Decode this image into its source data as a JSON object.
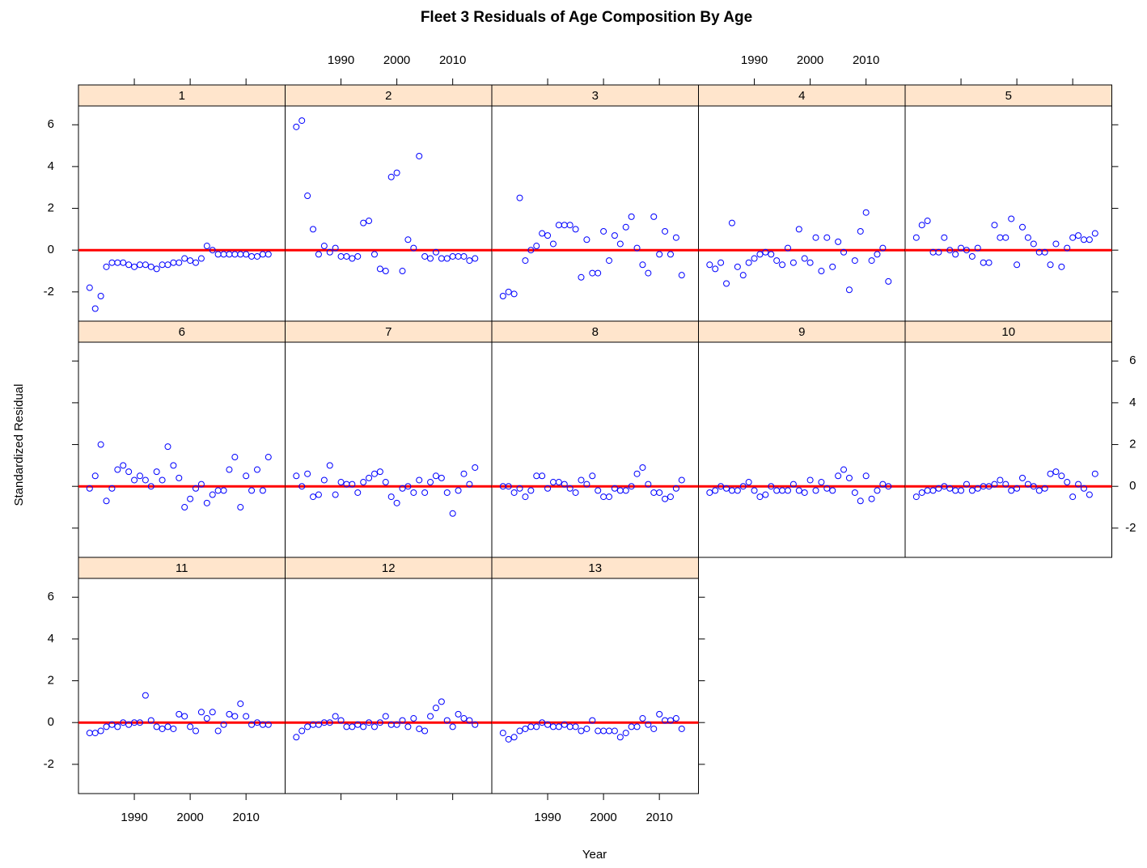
{
  "chart_data": {
    "type": "scatter",
    "title": "Fleet  3  Residuals of Age Composition By Age",
    "xlabel": "Year",
    "ylabel": "Standardized Residual",
    "x": [
      1982,
      1983,
      1984,
      1985,
      1986,
      1987,
      1988,
      1989,
      1990,
      1991,
      1992,
      1993,
      1994,
      1995,
      1996,
      1997,
      1998,
      1999,
      2000,
      2001,
      2002,
      2003,
      2004,
      2005,
      2006,
      2007,
      2008,
      2009,
      2010,
      2011,
      2012,
      2013,
      2014
    ],
    "xlim": [
      1980,
      2017
    ],
    "ylim": [
      -3.4,
      6.9
    ],
    "xticks": [
      1990,
      2000,
      2010
    ],
    "yticks": [
      -2,
      0,
      2,
      4,
      6
    ],
    "color": "#0000ff",
    "reference_line": 0,
    "reference_color": "#ff0000",
    "series": [
      {
        "name": "1",
        "values": [
          -1.8,
          -2.8,
          -2.2,
          -0.8,
          -0.6,
          -0.6,
          -0.6,
          -0.7,
          -0.8,
          -0.7,
          -0.7,
          -0.8,
          -0.9,
          -0.7,
          -0.7,
          -0.6,
          -0.6,
          -0.4,
          -0.5,
          -0.6,
          -0.4,
          0.2,
          0.0,
          -0.2,
          -0.2,
          -0.2,
          -0.2,
          -0.2,
          -0.2,
          -0.3,
          -0.3,
          -0.2,
          -0.2
        ]
      },
      {
        "name": "2",
        "values": [
          5.9,
          6.2,
          2.6,
          1.0,
          -0.2,
          0.2,
          -0.1,
          0.1,
          -0.3,
          -0.3,
          -0.4,
          -0.3,
          1.3,
          1.4,
          -0.2,
          -0.9,
          -1.0,
          3.5,
          3.7,
          -1.0,
          0.5,
          0.1,
          4.5,
          -0.3,
          -0.4,
          -0.1,
          -0.4,
          -0.4,
          -0.3,
          -0.3,
          -0.3,
          -0.5,
          -0.4
        ]
      },
      {
        "name": "3",
        "values": [
          -2.2,
          -2.0,
          -2.1,
          2.5,
          -0.5,
          0.0,
          0.2,
          0.8,
          0.7,
          0.3,
          1.2,
          1.2,
          1.2,
          1.0,
          -1.3,
          0.5,
          -1.1,
          -1.1,
          0.9,
          -0.5,
          0.7,
          0.3,
          1.1,
          1.6,
          0.1,
          -0.7,
          -1.1,
          1.6,
          -0.2,
          0.9,
          -0.2,
          0.6,
          -1.2
        ]
      },
      {
        "name": "4",
        "values": [
          -0.7,
          -0.9,
          -0.6,
          -1.6,
          1.3,
          -0.8,
          -1.2,
          -0.6,
          -0.4,
          -0.2,
          -0.1,
          -0.2,
          -0.5,
          -0.7,
          0.1,
          -0.6,
          1.0,
          -0.4,
          -0.6,
          0.6,
          -1.0,
          0.6,
          -0.8,
          0.4,
          -0.1,
          -1.9,
          -0.5,
          0.9,
          1.8,
          -0.5,
          -0.2,
          0.1,
          -1.5
        ]
      },
      {
        "name": "5",
        "values": [
          0.6,
          1.2,
          1.4,
          -0.1,
          -0.1,
          0.6,
          0.0,
          -0.2,
          0.1,
          0.0,
          -0.3,
          0.1,
          -0.6,
          -0.6,
          1.2,
          0.6,
          0.6,
          1.5,
          -0.7,
          1.1,
          0.6,
          0.3,
          -0.1,
          -0.1,
          -0.7,
          0.3,
          -0.8,
          0.1,
          0.6,
          0.7,
          0.5,
          0.5,
          0.8
        ]
      },
      {
        "name": "6",
        "values": [
          -0.1,
          0.5,
          2.0,
          -0.7,
          -0.1,
          0.8,
          1.0,
          0.7,
          0.3,
          0.5,
          0.3,
          0.0,
          0.7,
          0.3,
          1.9,
          1.0,
          0.4,
          -1.0,
          -0.6,
          -0.1,
          0.1,
          -0.8,
          -0.4,
          -0.2,
          -0.2,
          0.8,
          1.4,
          -1.0,
          0.5,
          -0.2,
          0.8,
          -0.2,
          1.4
        ]
      },
      {
        "name": "7",
        "values": [
          0.5,
          0.0,
          0.6,
          -0.5,
          -0.4,
          0.3,
          1.0,
          -0.4,
          0.2,
          0.1,
          0.1,
          -0.3,
          0.2,
          0.4,
          0.6,
          0.7,
          0.2,
          -0.5,
          -0.8,
          -0.1,
          0.0,
          -0.3,
          0.3,
          -0.3,
          0.2,
          0.5,
          0.4,
          -0.3,
          -1.3,
          -0.2,
          0.6,
          0.1,
          0.9
        ]
      },
      {
        "name": "8",
        "values": [
          0.0,
          0.0,
          -0.3,
          -0.1,
          -0.5,
          -0.2,
          0.5,
          0.5,
          -0.1,
          0.2,
          0.2,
          0.1,
          -0.1,
          -0.3,
          0.3,
          0.1,
          0.5,
          -0.2,
          -0.5,
          -0.5,
          -0.1,
          -0.2,
          -0.2,
          0.0,
          0.6,
          0.9,
          0.1,
          -0.3,
          -0.3,
          -0.6,
          -0.5,
          -0.1,
          0.3
        ]
      },
      {
        "name": "9",
        "values": [
          -0.3,
          -0.2,
          0.0,
          -0.1,
          -0.2,
          -0.2,
          0.0,
          0.2,
          -0.2,
          -0.5,
          -0.4,
          0.0,
          -0.2,
          -0.2,
          -0.2,
          0.1,
          -0.2,
          -0.3,
          0.3,
          -0.2,
          0.2,
          -0.1,
          -0.2,
          0.5,
          0.8,
          0.4,
          -0.3,
          -0.7,
          0.5,
          -0.6,
          -0.2,
          0.1,
          0.0
        ]
      },
      {
        "name": "10",
        "values": [
          -0.5,
          -0.3,
          -0.2,
          -0.2,
          -0.1,
          0.0,
          -0.1,
          -0.2,
          -0.2,
          0.1,
          -0.2,
          -0.1,
          0.0,
          0.0,
          0.1,
          0.3,
          0.1,
          -0.2,
          -0.1,
          0.4,
          0.1,
          0.0,
          -0.2,
          -0.1,
          0.6,
          0.7,
          0.5,
          0.2,
          -0.5,
          0.1,
          -0.1,
          -0.4,
          0.6
        ]
      },
      {
        "name": "11",
        "values": [
          -0.5,
          -0.5,
          -0.4,
          -0.2,
          -0.1,
          -0.2,
          0.0,
          -0.1,
          0.0,
          0.0,
          1.3,
          0.1,
          -0.2,
          -0.3,
          -0.2,
          -0.3,
          0.4,
          0.3,
          -0.2,
          -0.4,
          0.5,
          0.2,
          0.5,
          -0.4,
          -0.1,
          0.4,
          0.3,
          0.9,
          0.3,
          -0.1,
          0.0,
          -0.1,
          -0.1
        ]
      },
      {
        "name": "12",
        "values": [
          -0.7,
          -0.4,
          -0.2,
          -0.1,
          -0.1,
          0.0,
          0.0,
          0.3,
          0.1,
          -0.2,
          -0.2,
          -0.1,
          -0.2,
          0.0,
          -0.2,
          0.0,
          0.3,
          -0.1,
          -0.1,
          0.1,
          -0.2,
          0.2,
          -0.3,
          -0.4,
          0.3,
          0.7,
          1.0,
          0.1,
          -0.2,
          0.4,
          0.2,
          0.1,
          -0.1
        ]
      },
      {
        "name": "13",
        "values": [
          -0.5,
          -0.8,
          -0.7,
          -0.4,
          -0.3,
          -0.2,
          -0.2,
          0.0,
          -0.1,
          -0.2,
          -0.2,
          -0.1,
          -0.2,
          -0.2,
          -0.4,
          -0.3,
          0.1,
          -0.4,
          -0.4,
          -0.4,
          -0.4,
          -0.7,
          -0.5,
          -0.2,
          -0.2,
          0.2,
          -0.1,
          -0.3,
          0.4,
          0.1,
          0.1,
          0.2,
          -0.3
        ]
      }
    ]
  }
}
